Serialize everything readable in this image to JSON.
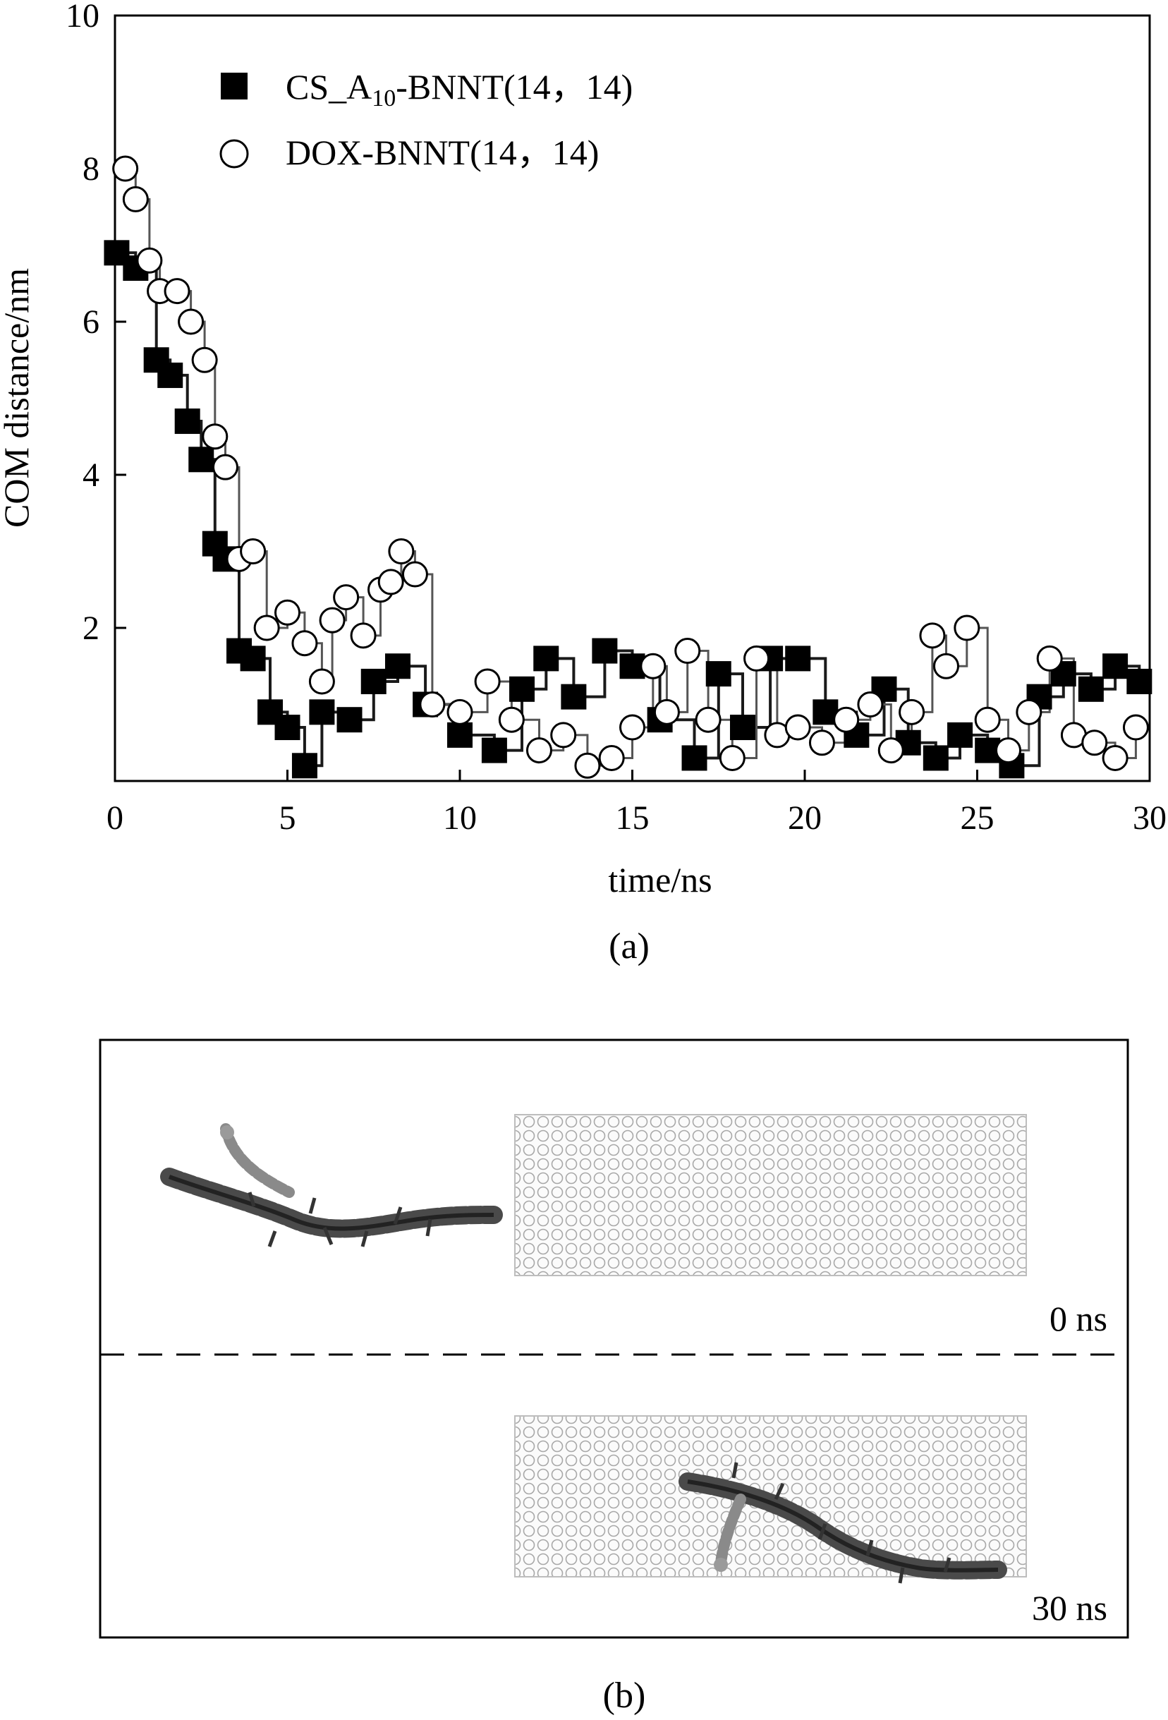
{
  "chart_data": {
    "type": "scatter",
    "xlabel": "time/ns",
    "ylabel": "COM distance/nm",
    "xlim": [
      0,
      30
    ],
    "ylim": [
      0,
      10
    ],
    "x_ticks": [
      "0",
      "5",
      "10",
      "15",
      "20",
      "25",
      "30"
    ],
    "y_ticks": [
      "2",
      "4",
      "6",
      "8",
      "10"
    ],
    "grid": false,
    "legend_position": "top-left",
    "series": [
      {
        "name_prefix": "CS_A",
        "name_subscript": "10",
        "name_suffix": "-BNNT(14，14)",
        "marker": "filled-square",
        "color": "#000000",
        "x": [
          0.05,
          0.6,
          1.2,
          1.6,
          2.1,
          2.5,
          2.9,
          3.2,
          3.6,
          4.0,
          4.5,
          5.0,
          5.5,
          6.0,
          6.8,
          7.5,
          8.2,
          9.0,
          10.0,
          11.0,
          11.8,
          12.5,
          13.3,
          14.2,
          15.0,
          15.8,
          16.8,
          17.5,
          18.2,
          19.0,
          19.8,
          20.6,
          21.5,
          22.3,
          23.0,
          23.8,
          24.5,
          25.3,
          26.0,
          26.8,
          27.5,
          28.3,
          29.0,
          29.7
        ],
        "y": [
          6.9,
          6.7,
          5.5,
          5.3,
          4.7,
          4.2,
          3.1,
          2.9,
          1.7,
          1.6,
          0.9,
          0.7,
          0.2,
          0.9,
          0.8,
          1.3,
          1.5,
          1.0,
          0.6,
          0.4,
          1.2,
          1.6,
          1.1,
          1.7,
          1.5,
          0.8,
          0.3,
          1.4,
          0.7,
          1.6,
          1.6,
          0.9,
          0.6,
          1.2,
          0.5,
          0.3,
          0.6,
          0.4,
          0.2,
          1.1,
          1.4,
          1.2,
          1.5,
          1.3
        ]
      },
      {
        "name": "DOX-BNNT(14，14)",
        "marker": "open-circle",
        "color": "#000000",
        "x": [
          0.3,
          0.6,
          1.0,
          1.3,
          1.8,
          2.2,
          2.6,
          2.9,
          3.2,
          3.6,
          4.0,
          4.4,
          5.0,
          5.5,
          6.0,
          6.3,
          6.7,
          7.2,
          7.7,
          8.0,
          8.3,
          8.7,
          9.2,
          10.0,
          10.8,
          11.5,
          12.3,
          13.0,
          13.7,
          14.4,
          15.0,
          15.6,
          16.0,
          16.6,
          17.2,
          17.9,
          18.6,
          19.2,
          19.8,
          20.5,
          21.2,
          21.9,
          22.5,
          23.1,
          23.7,
          24.1,
          24.7,
          25.3,
          25.9,
          26.5,
          27.1,
          27.8,
          28.4,
          29.0,
          29.6
        ],
        "y": [
          8.0,
          7.6,
          6.8,
          6.4,
          6.4,
          6.0,
          5.5,
          4.5,
          4.1,
          2.9,
          3.0,
          2.0,
          2.2,
          1.8,
          1.3,
          2.1,
          2.4,
          1.9,
          2.5,
          2.6,
          3.0,
          2.7,
          1.0,
          0.9,
          1.3,
          0.8,
          0.4,
          0.6,
          0.2,
          0.3,
          0.7,
          1.5,
          0.9,
          1.7,
          0.8,
          0.3,
          1.6,
          0.6,
          0.7,
          0.5,
          0.8,
          1.0,
          0.4,
          0.9,
          1.9,
          1.5,
          2.0,
          0.8,
          0.4,
          0.9,
          1.6,
          0.6,
          0.5,
          0.3,
          0.7
        ]
      }
    ]
  },
  "captions": {
    "panel_a": "(a)",
    "panel_b": "(b)"
  },
  "panel_b": {
    "top_time": "0 ns",
    "bottom_time": "30 ns"
  }
}
